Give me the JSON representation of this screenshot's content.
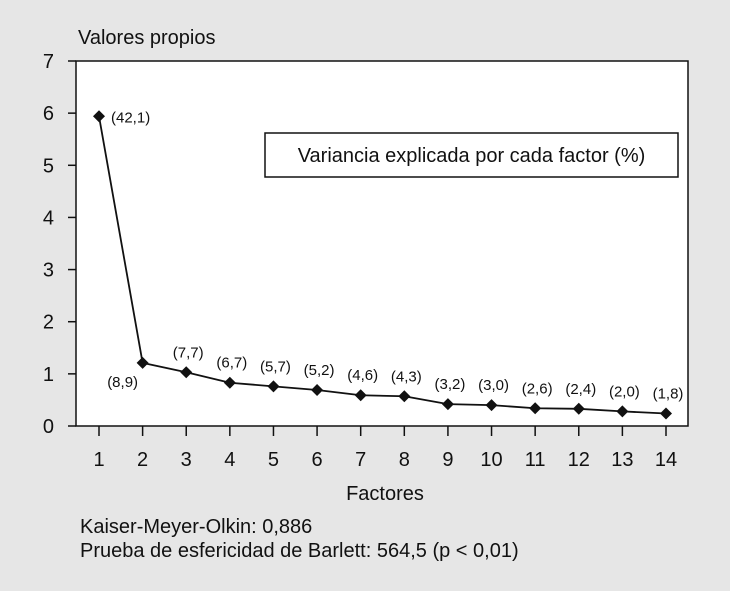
{
  "chart_data": {
    "type": "line",
    "ylabel": "Valores propios",
    "xlabel": "Factores",
    "legend_box": "Variancia explicada por cada factor (%)",
    "ylim": [
      0,
      7
    ],
    "yticks": [
      "0",
      "1",
      "2",
      "3",
      "4",
      "5",
      "6",
      "7"
    ],
    "x": [
      1,
      2,
      3,
      4,
      5,
      6,
      7,
      8,
      9,
      10,
      11,
      12,
      13,
      14
    ],
    "xtick_labels": [
      "1",
      "2",
      "3",
      "4",
      "5",
      "6",
      "7",
      "8",
      "9",
      "10",
      "11",
      "12",
      "13",
      "14"
    ],
    "series": [
      {
        "values": [
          5.94,
          1.21,
          1.03,
          0.83,
          0.76,
          0.69,
          0.59,
          0.57,
          0.42,
          0.4,
          0.34,
          0.33,
          0.28,
          0.24
        ]
      }
    ],
    "point_labels": [
      "(42,1)",
      "(8,9)",
      "(7,7)",
      "(6,7)",
      "(5,7)",
      "(5,2)",
      "(4,6)",
      "(4,3)",
      "(3,2)",
      "(3,0)",
      "(2,6)",
      "(2,4)",
      "(2,0)",
      "(1,8)"
    ],
    "grid": false,
    "marker": "diamond"
  },
  "footer": {
    "kmo": "Kaiser-Meyer-Olkin: 0,886",
    "bartlett": "Prueba de esfericidad de Barlett: 564,5 (p < 0,01)"
  }
}
